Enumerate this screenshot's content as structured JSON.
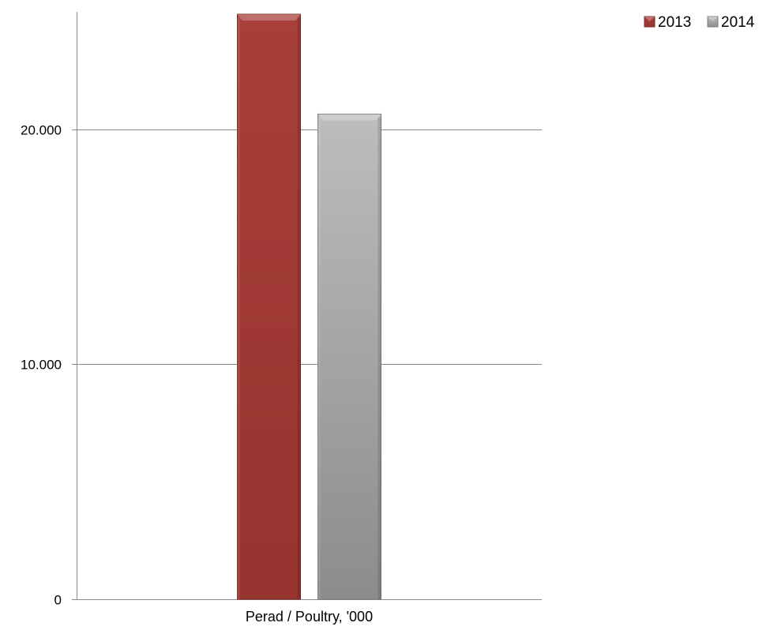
{
  "chart_data": {
    "type": "bar",
    "categories": [
      "Perad / Poultry, '000"
    ],
    "series": [
      {
        "name": "2013",
        "values": [
          24900
        ],
        "color": "#a03b37"
      },
      {
        "name": "2014",
        "values": [
          20650
        ],
        "color": "#a8a8a8"
      }
    ],
    "title": "",
    "xlabel": "",
    "ylabel": "",
    "ylim": [
      0,
      25000
    ],
    "yticks": [
      {
        "value": 0,
        "label": "0"
      },
      {
        "value": 10000,
        "label": "10.000"
      },
      {
        "value": 20000,
        "label": "20.000"
      }
    ],
    "grid": true,
    "legend_position": "top-right"
  }
}
